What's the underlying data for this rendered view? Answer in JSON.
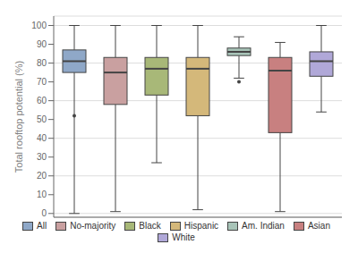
{
  "chart_data": {
    "type": "box",
    "categories": [
      "All",
      "No-majority",
      "Black",
      "Hispanic",
      "Am. Indian",
      "Asian",
      "White"
    ],
    "whislo": [
      0,
      1,
      27,
      2,
      72,
      1,
      54
    ],
    "q1": [
      75,
      58,
      63,
      52,
      84,
      43,
      73
    ],
    "med": [
      81,
      75,
      77,
      77,
      86,
      76,
      81
    ],
    "q3": [
      87,
      83,
      83,
      83,
      88,
      83,
      86
    ],
    "whishi": [
      100,
      100,
      100,
      100,
      94,
      91,
      100
    ],
    "fliers": [
      [
        52
      ],
      [],
      [],
      [],
      [
        70
      ],
      [],
      []
    ],
    "colors": [
      "#8FA8C8",
      "#C9A0A0",
      "#A8B878",
      "#D4B87A",
      "#A8C4B8",
      "#C88080",
      "#B0A8D8"
    ],
    "ylabel": "Total rooftop potential (%)",
    "ylim": [
      -2,
      105
    ],
    "yticks": [
      0,
      10,
      20,
      30,
      40,
      50,
      60,
      70,
      80,
      90,
      100
    ],
    "grid": true,
    "legend": "bottom",
    "tick_labels": "y"
  }
}
